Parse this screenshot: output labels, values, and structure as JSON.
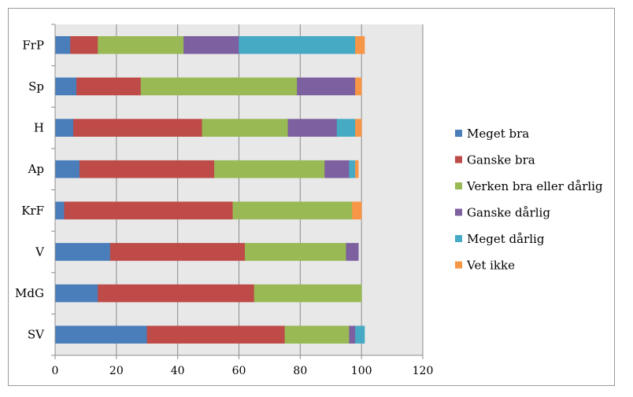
{
  "chart_data": {
    "type": "bar",
    "orientation": "horizontal",
    "stacked": true,
    "categories": [
      "FrP",
      "Sp",
      "H",
      "Ap",
      "KrF",
      "V",
      "MdG",
      "SV"
    ],
    "series": [
      {
        "name": "Meget bra",
        "color": "#4a7ebb",
        "values": [
          5,
          7,
          6,
          8,
          3,
          18,
          14,
          30
        ]
      },
      {
        "name": "Ganske bra",
        "color": "#be4b48",
        "values": [
          9,
          21,
          42,
          44,
          55,
          44,
          51,
          45
        ]
      },
      {
        "name": "Verken bra eller dårlig",
        "color": "#98b954",
        "values": [
          28,
          51,
          28,
          36,
          39,
          33,
          35,
          21
        ]
      },
      {
        "name": "Ganske dårlig",
        "color": "#7d60a0",
        "values": [
          18,
          19,
          16,
          8,
          0,
          4,
          0,
          2
        ]
      },
      {
        "name": "Meget dårlig",
        "color": "#46aac5",
        "values": [
          38,
          0,
          6,
          2,
          0,
          0,
          0,
          3
        ]
      },
      {
        "name": "Vet ikke",
        "color": "#f79646",
        "values": [
          3,
          2,
          2,
          1,
          3,
          0,
          0,
          0
        ]
      }
    ],
    "xlim": [
      0,
      120
    ],
    "xticks": [
      "0",
      "20",
      "40",
      "60",
      "80",
      "100",
      "120"
    ],
    "grid": true,
    "legend_position": "right"
  }
}
